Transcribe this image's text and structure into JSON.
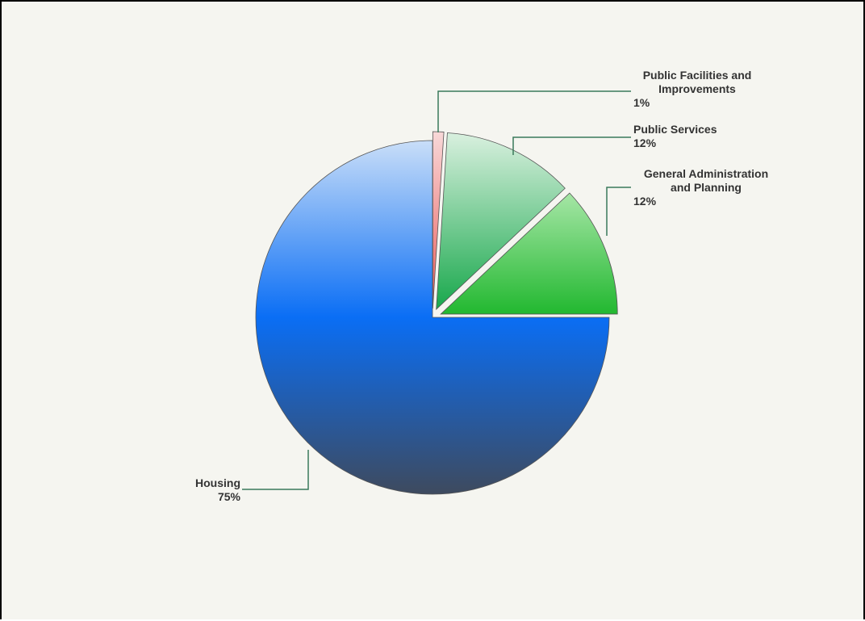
{
  "chart_data": {
    "type": "pie",
    "title": "",
    "slices": [
      {
        "label": "Public Facilities and Improvements",
        "label_lines": [
          "Public Facilities and",
          "Improvements"
        ],
        "value": 1,
        "value_text": "1%",
        "colors": [
          "#f8d8d8",
          "#e85a5a"
        ]
      },
      {
        "label": "Public Services",
        "label_lines": [
          "Public Services"
        ],
        "value": 12,
        "value_text": "12%",
        "colors": [
          "#d9f0df",
          "#18a84c"
        ]
      },
      {
        "label": "General Administration and Planning",
        "label_lines": [
          "General Administration",
          "and Planning"
        ],
        "value": 12,
        "value_text": "12%",
        "colors": [
          "#a6e6a6",
          "#22b830"
        ]
      },
      {
        "label": "Housing",
        "label_lines": [
          "Housing"
        ],
        "value": 75,
        "value_text": "75%",
        "colors": [
          "#c9def8",
          "#0a6ef5",
          "#3e4a5e"
        ]
      }
    ],
    "start_angle_deg": 0,
    "direction": "clockwise",
    "exploded": true,
    "legend": "none",
    "leader_line_color": "#3a7a5a",
    "slice_stroke_color": "#555555",
    "background_color": "#f5f5f0"
  }
}
